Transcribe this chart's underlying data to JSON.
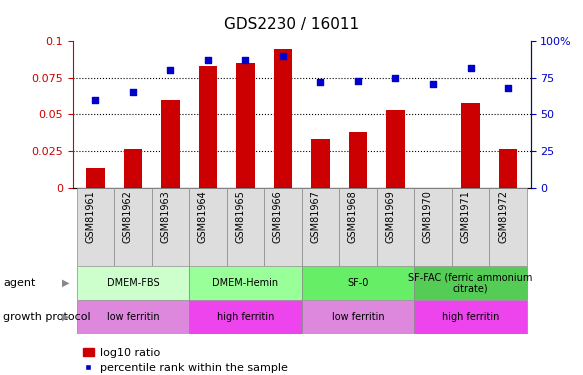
{
  "title": "GDS2230 / 16011",
  "samples": [
    "GSM81961",
    "GSM81962",
    "GSM81963",
    "GSM81964",
    "GSM81965",
    "GSM81966",
    "GSM81967",
    "GSM81968",
    "GSM81969",
    "GSM81970",
    "GSM81971",
    "GSM81972"
  ],
  "log10_ratio": [
    0.013,
    0.026,
    0.06,
    0.083,
    0.085,
    0.095,
    0.033,
    0.038,
    0.053,
    0.0,
    0.058,
    0.026
  ],
  "percentile_rank": [
    60,
    65,
    80,
    87,
    87,
    90,
    72,
    73,
    75,
    71,
    82,
    68
  ],
  "bar_color": "#cc0000",
  "dot_color": "#0000cc",
  "ylim_left": [
    0,
    0.1
  ],
  "ylim_right": [
    0,
    100
  ],
  "yticks_left": [
    0,
    0.025,
    0.05,
    0.075,
    0.1
  ],
  "ytick_labels_left": [
    "0",
    "0.025",
    "0.05",
    "0.075",
    "0.1"
  ],
  "yticks_right": [
    0,
    25,
    50,
    75,
    100
  ],
  "ytick_labels_right": [
    "0",
    "25",
    "50",
    "75",
    "100%"
  ],
  "grid_values": [
    0.025,
    0.05,
    0.075
  ],
  "agent_groups": [
    {
      "label": "DMEM-FBS",
      "start": 0,
      "end": 3,
      "color": "#ccffcc"
    },
    {
      "label": "DMEM-Hemin",
      "start": 3,
      "end": 6,
      "color": "#99ff99"
    },
    {
      "label": "SF-0",
      "start": 6,
      "end": 9,
      "color": "#66ee66"
    },
    {
      "label": "SF-FAC (ferric ammonium\ncitrate)",
      "start": 9,
      "end": 12,
      "color": "#55cc55"
    }
  ],
  "protocol_groups": [
    {
      "label": "low ferritin",
      "start": 0,
      "end": 3,
      "color": "#dd88dd"
    },
    {
      "label": "high ferritin",
      "start": 3,
      "end": 6,
      "color": "#ee44ee"
    },
    {
      "label": "low ferritin",
      "start": 6,
      "end": 9,
      "color": "#dd88dd"
    },
    {
      "label": "high ferritin",
      "start": 9,
      "end": 12,
      "color": "#ee44ee"
    }
  ],
  "xtick_cell_color": "#dddddd",
  "legend_bar_label": "log10 ratio",
  "legend_dot_label": "percentile rank within the sample",
  "agent_label": "agent",
  "protocol_label": "growth protocol",
  "tick_label_color_left": "#cc0000",
  "tick_label_color_right": "#0000cc",
  "background_color": "#ffffff",
  "bar_width": 0.5,
  "title_fontsize": 11,
  "axis_fontsize": 8,
  "label_fontsize": 8,
  "cell_fontsize": 7,
  "legend_fontsize": 8
}
